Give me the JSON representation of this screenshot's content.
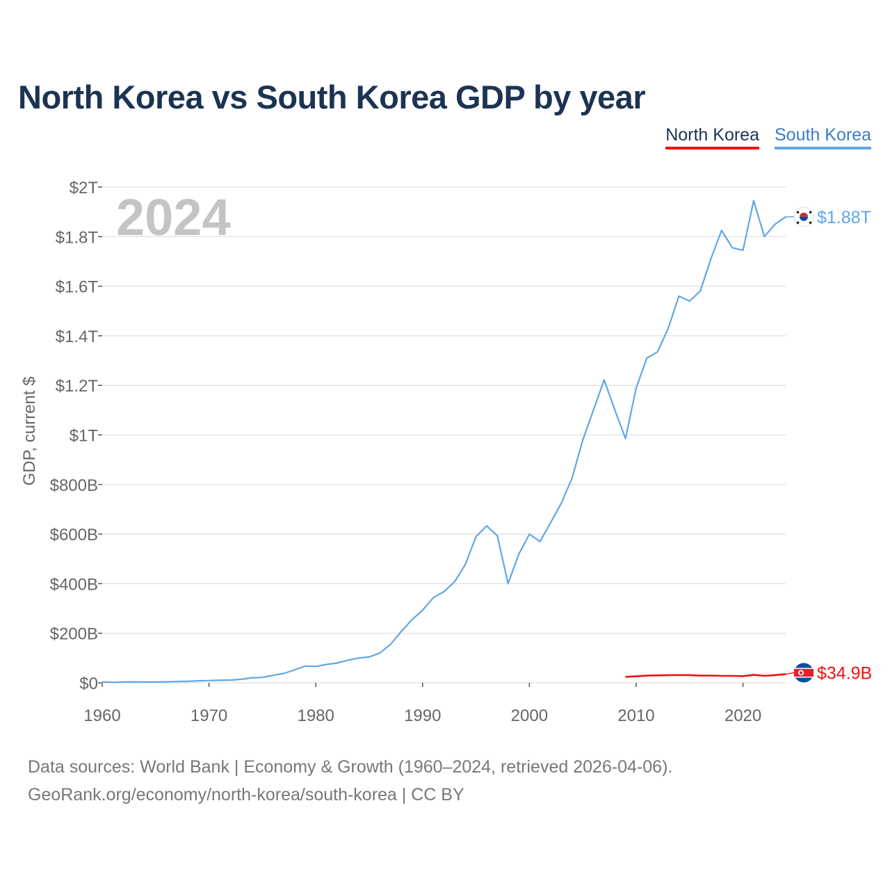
{
  "title": "North Korea vs South Korea GDP by year",
  "legend": {
    "north_korea": "North Korea",
    "south_korea": "South Korea"
  },
  "colors": {
    "north_korea": "#ee1111",
    "south_korea": "#5fa7e6",
    "title": "#1c3353",
    "grid": "#e4e4e4",
    "axis_text": "#666666",
    "year_watermark": "#c4c4c4"
  },
  "footer": {
    "line1": "Data sources: World Bank | Economy & Growth (1960–2024, retrieved 2026-04-06).",
    "line2": "GeoRank.org/economy/north-korea/south-korea | CC BY"
  },
  "chart_data": {
    "type": "line",
    "title": "North Korea vs South Korea GDP by year",
    "xlabel": "",
    "ylabel": "GDP, current $",
    "year_label": "2024",
    "xlim": [
      1960,
      2024
    ],
    "ylim": [
      0,
      2000
    ],
    "value_unit": "billions USD",
    "x_ticks": [
      1960,
      1970,
      1980,
      1990,
      2000,
      2010,
      2020
    ],
    "y_ticks": [
      {
        "value": 0,
        "label": "$0"
      },
      {
        "value": 200,
        "label": "$200B"
      },
      {
        "value": 400,
        "label": "$400B"
      },
      {
        "value": 600,
        "label": "$600B"
      },
      {
        "value": 800,
        "label": "$800B"
      },
      {
        "value": 1000,
        "label": "$1T"
      },
      {
        "value": 1200,
        "label": "$1.2T"
      },
      {
        "value": 1400,
        "label": "$1.4T"
      },
      {
        "value": 1600,
        "label": "$1.6T"
      },
      {
        "value": 1800,
        "label": "$1.8T"
      },
      {
        "value": 2000,
        "label": "$2T"
      }
    ],
    "grid": true,
    "legend_position": "top-right",
    "series": [
      {
        "name": "South Korea",
        "key": "south_korea",
        "end_label": "$1.88T",
        "icon": "south-korea-flag-icon",
        "x": [
          1960,
          1961,
          1962,
          1963,
          1964,
          1965,
          1966,
          1967,
          1968,
          1969,
          1970,
          1971,
          1972,
          1973,
          1974,
          1975,
          1976,
          1977,
          1978,
          1979,
          1980,
          1981,
          1982,
          1983,
          1984,
          1985,
          1986,
          1987,
          1988,
          1989,
          1990,
          1991,
          1992,
          1993,
          1994,
          1995,
          1996,
          1997,
          1998,
          1999,
          2000,
          2001,
          2002,
          2003,
          2004,
          2005,
          2006,
          2007,
          2008,
          2009,
          2010,
          2011,
          2012,
          2013,
          2014,
          2015,
          2016,
          2017,
          2018,
          2019,
          2020,
          2021,
          2022,
          2023,
          2024
        ],
        "values": [
          4,
          2,
          3,
          4,
          3,
          3,
          4,
          5,
          6,
          8,
          9,
          10,
          11,
          14,
          20,
          22,
          30,
          38,
          52,
          68,
          66,
          74,
          80,
          91,
          100,
          104,
          120,
          155,
          207,
          254,
          293,
          343,
          368,
          408,
          477,
          590,
          633,
          593,
          400,
          518,
          600,
          570,
          647,
          726,
          826,
          980,
          1100,
          1222,
          1100,
          985,
          1190,
          1310,
          1335,
          1430,
          1560,
          1540,
          1580,
          1711,
          1825,
          1755,
          1745,
          1945,
          1800,
          1850,
          1880
        ]
      },
      {
        "name": "North Korea",
        "key": "north_korea",
        "end_label": "$34.9B",
        "icon": "north-korea-flag-icon",
        "x": [
          2009,
          2010,
          2011,
          2012,
          2013,
          2014,
          2015,
          2016,
          2017,
          2018,
          2019,
          2020,
          2021,
          2022,
          2023,
          2024
        ],
        "values": [
          24,
          26,
          29,
          30,
          31,
          31,
          31,
          29,
          29,
          28,
          28,
          27,
          32,
          28,
          31,
          34.9
        ]
      }
    ]
  }
}
